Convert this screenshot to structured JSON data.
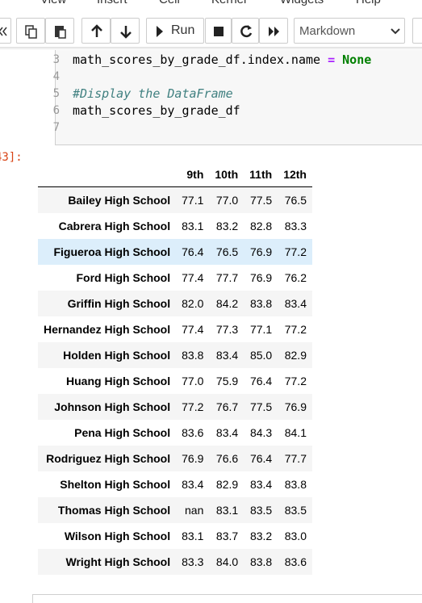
{
  "menu": [
    "View",
    "Insert",
    "Cell",
    "Kernel",
    "Widgets",
    "Help"
  ],
  "toolbar": {
    "run": "Run",
    "cell_type": "Markdown"
  },
  "code_cell": {
    "lines": [
      {
        "number": "3",
        "parts": [
          {
            "text": "math_scores_by_grade_df.index.name ",
            "kind": "plain"
          },
          {
            "text": "= ",
            "kind": "operator"
          },
          {
            "text": "None",
            "kind": "keyword"
          }
        ]
      },
      {
        "number": "4"
      },
      {
        "number": "5",
        "parts": [
          {
            "text": "#Display the DataFrame",
            "kind": "comment"
          }
        ]
      },
      {
        "number": "6",
        "parts": [
          {
            "text": "math_scores_by_grade_df",
            "kind": "plain"
          }
        ]
      },
      {
        "number": "7"
      }
    ]
  },
  "output": {
    "prompt": "43]:",
    "table": {
      "columns": [
        "9th",
        "10th",
        "11th",
        "12th"
      ],
      "highlighted_row": 2,
      "rows": [
        {
          "index": "Bailey High School",
          "values": [
            "77.1",
            "77.0",
            "77.5",
            "76.5"
          ]
        },
        {
          "index": "Cabrera High School",
          "values": [
            "83.1",
            "83.2",
            "82.8",
            "83.3"
          ]
        },
        {
          "index": "Figueroa High School",
          "values": [
            "76.4",
            "76.5",
            "76.9",
            "77.2"
          ]
        },
        {
          "index": "Ford High School",
          "values": [
            "77.4",
            "77.7",
            "76.9",
            "76.2"
          ]
        },
        {
          "index": "Griffin High School",
          "values": [
            "82.0",
            "84.2",
            "83.8",
            "83.4"
          ]
        },
        {
          "index": "Hernandez High School",
          "values": [
            "77.4",
            "77.3",
            "77.1",
            "77.2"
          ]
        },
        {
          "index": "Holden High School",
          "values": [
            "83.8",
            "83.4",
            "85.0",
            "82.9"
          ]
        },
        {
          "index": "Huang High School",
          "values": [
            "77.0",
            "75.9",
            "76.4",
            "77.2"
          ]
        },
        {
          "index": "Johnson High School",
          "values": [
            "77.2",
            "76.7",
            "77.5",
            "76.9"
          ]
        },
        {
          "index": "Pena High School",
          "values": [
            "83.6",
            "83.4",
            "84.3",
            "84.1"
          ]
        },
        {
          "index": "Rodriguez High School",
          "values": [
            "76.9",
            "76.6",
            "76.4",
            "77.7"
          ]
        },
        {
          "index": "Shelton High School",
          "values": [
            "83.4",
            "82.9",
            "83.4",
            "83.8"
          ]
        },
        {
          "index": "Thomas High School",
          "values": [
            "nan",
            "83.1",
            "83.5",
            "83.5"
          ]
        },
        {
          "index": "Wilson High School",
          "values": [
            "83.1",
            "83.7",
            "83.2",
            "83.0"
          ]
        },
        {
          "index": "Wright High School",
          "values": [
            "83.3",
            "84.0",
            "83.8",
            "83.6"
          ]
        }
      ]
    }
  }
}
